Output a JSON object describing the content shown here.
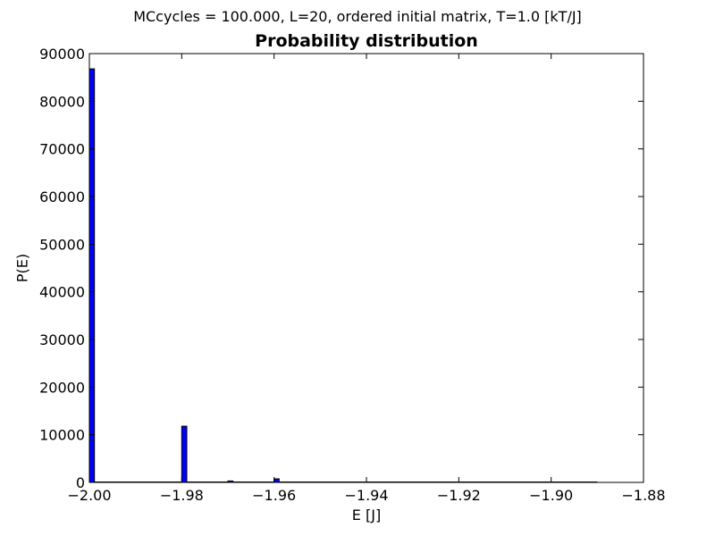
{
  "figure": {
    "suptitle": "MCcycles = 100.000, L=20, ordered initial matrix, T=1.0 [kT/J]"
  },
  "chart_data": {
    "type": "bar",
    "title": "Probability distribution",
    "xlabel": "E [J]",
    "ylabel": "P(E)",
    "xlim": [
      -2.0,
      -1.88
    ],
    "ylim": [
      0,
      90000
    ],
    "xticks": [
      -2.0,
      -1.98,
      -1.96,
      -1.94,
      -1.92,
      -1.9,
      -1.88
    ],
    "xtick_labels": [
      "−2.00",
      "−1.98",
      "−1.96",
      "−1.94",
      "−1.92",
      "−1.90",
      "−1.88"
    ],
    "yticks": [
      0,
      10000,
      20000,
      30000,
      40000,
      50000,
      60000,
      70000,
      80000,
      90000
    ],
    "ytick_labels": [
      "0",
      "10000",
      "20000",
      "30000",
      "40000",
      "50000",
      "60000",
      "70000",
      "80000",
      "90000"
    ],
    "bin_width": 0.0011,
    "bar_color": "#0000ff",
    "points": [
      {
        "x": -2.0,
        "y": 86800
      },
      {
        "x": -1.98,
        "y": 11800
      },
      {
        "x": -1.97,
        "y": 300
      },
      {
        "x": -1.96,
        "y": 750
      }
    ],
    "baseline_extent": [
      -2.0,
      -1.89
    ],
    "grid": false
  }
}
